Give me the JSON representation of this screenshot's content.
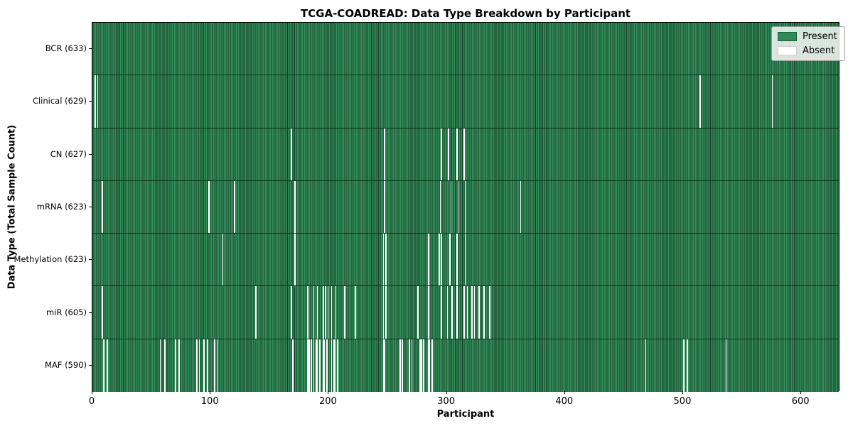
{
  "chart_data": {
    "type": "heatmap",
    "title": "TCGA-COADREAD: Data Type Breakdown by Participant",
    "xlabel": "Participant",
    "ylabel": "Data Type (Total Sample Count)",
    "n_participants": 633,
    "x_ticks": [
      0,
      100,
      200,
      300,
      400,
      500,
      600
    ],
    "grid": false,
    "legend_position": "upper right",
    "colors": {
      "present": "#2e8b57",
      "absent": "#ffffff",
      "cell_edge": "#123a22"
    },
    "legend": [
      {
        "label": "Present",
        "color": "#2e8b57"
      },
      {
        "label": "Absent",
        "color": "#ffffff"
      }
    ],
    "rows": [
      {
        "label": "BCR (633)",
        "present_count": 633,
        "absent_participants": []
      },
      {
        "label": "Clinical (629)",
        "present_count": 629,
        "absent_participants": [
          2,
          4,
          514,
          575
        ]
      },
      {
        "label": "CN (627)",
        "present_count": 627,
        "absent_participants": [
          168,
          247,
          295,
          301,
          308,
          314
        ]
      },
      {
        "label": "mRNA (623)",
        "present_count": 623,
        "absent_participants": [
          8,
          98,
          120,
          171,
          247,
          294,
          303,
          309,
          315,
          362
        ]
      },
      {
        "label": "Methylation (623)",
        "present_count": 623,
        "absent_participants": [
          110,
          171,
          246,
          248,
          284,
          293,
          295,
          302,
          308,
          315
        ]
      },
      {
        "label": "miR (605)",
        "present_count": 605,
        "absent_participants": [
          8,
          138,
          168,
          182,
          187,
          190,
          195,
          197,
          199,
          202,
          205,
          213,
          222,
          246,
          248,
          275,
          284,
          295,
          300,
          304,
          308,
          314,
          317,
          321,
          323,
          327,
          331,
          336
        ]
      },
      {
        "label": "MAF (590)",
        "present_count": 590,
        "absent_participants": [
          9,
          12,
          57,
          61,
          70,
          73,
          88,
          90,
          94,
          97,
          103,
          105,
          169,
          182,
          183,
          185,
          187,
          189,
          190,
          192,
          195,
          196,
          198,
          202,
          204,
          205,
          207,
          246,
          247,
          260,
          262,
          268,
          270,
          277,
          278,
          280,
          284,
          285,
          287,
          468,
          500,
          503,
          536
        ]
      }
    ]
  }
}
